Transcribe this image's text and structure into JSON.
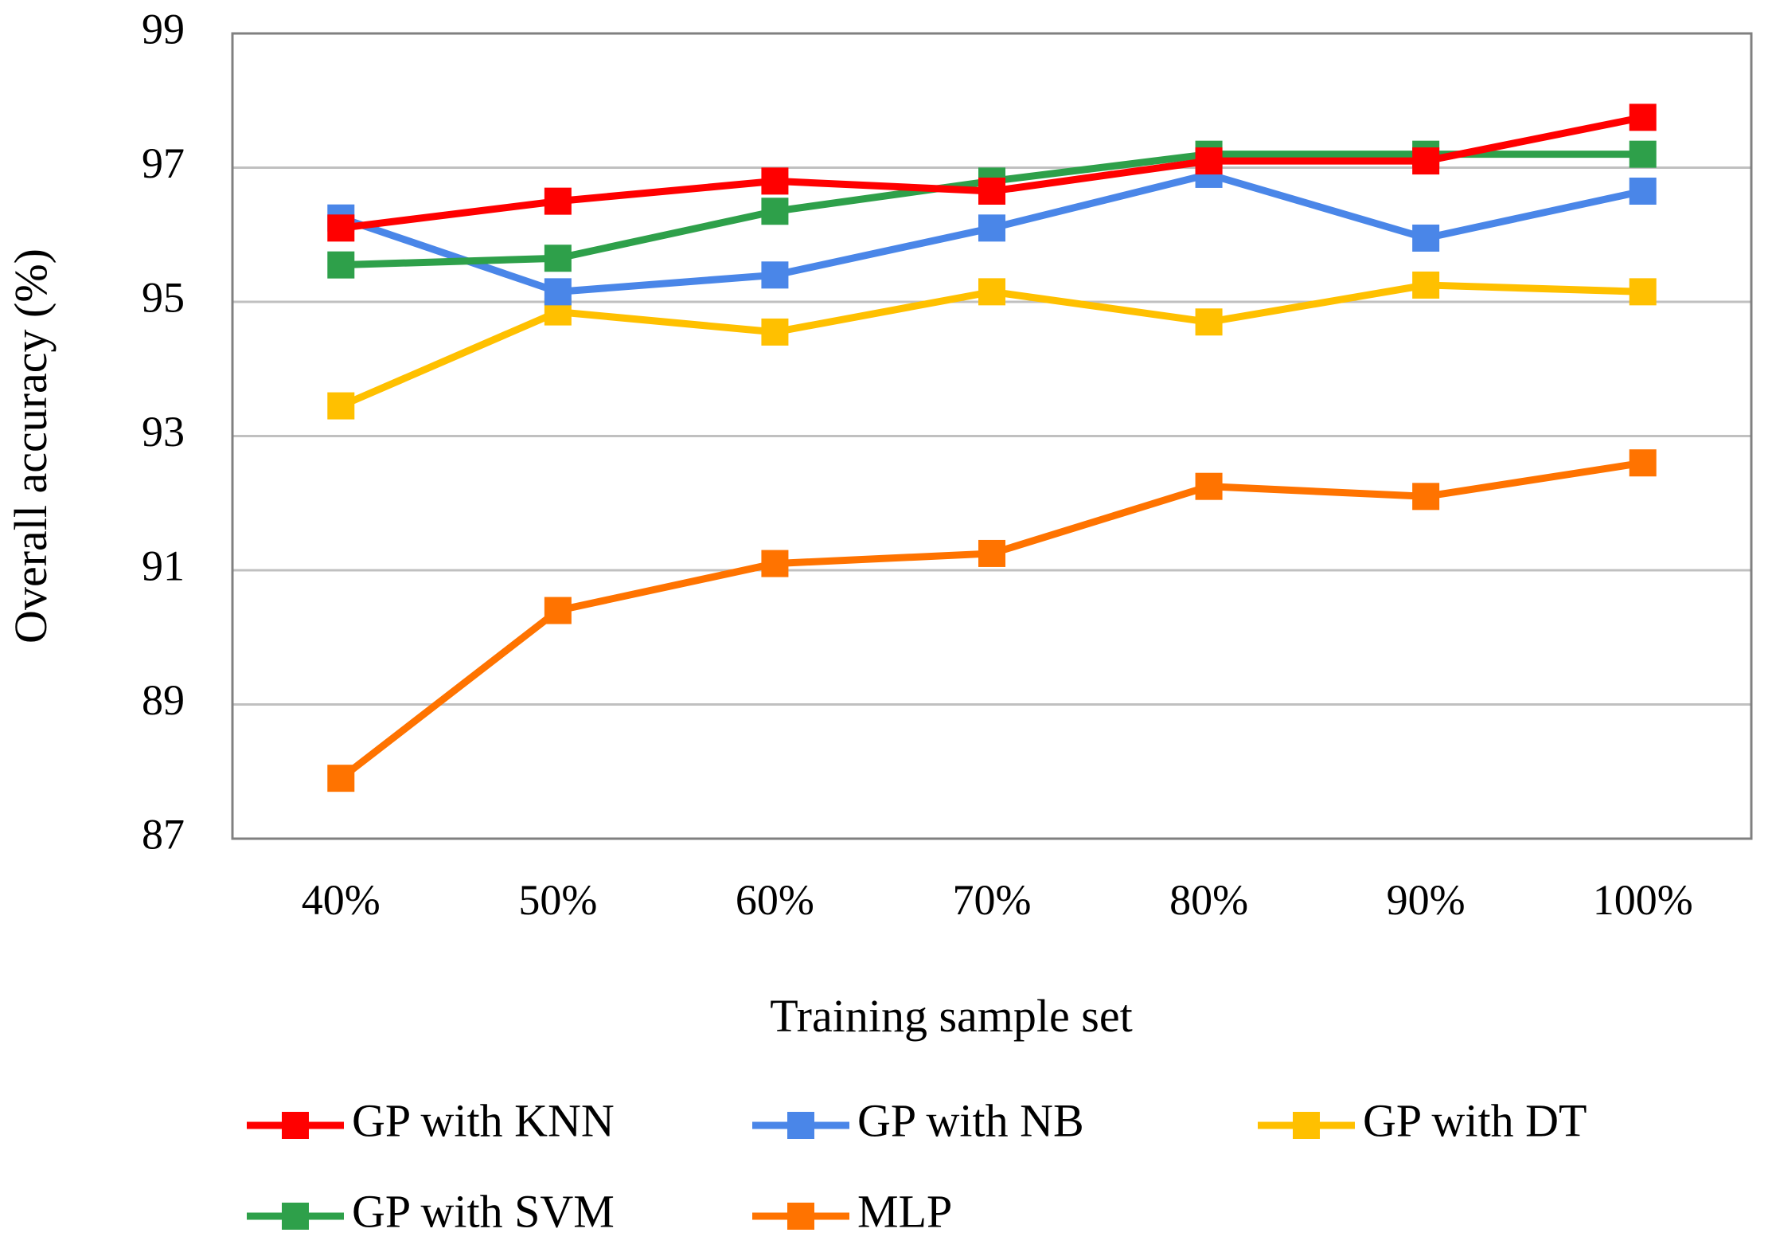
{
  "chart_data": {
    "type": "line",
    "title": "",
    "xlabel": "Training sample set",
    "ylabel": "Overall accuracy (%)",
    "categories": [
      "40%",
      "50%",
      "60%",
      "70%",
      "80%",
      "90%",
      "100%"
    ],
    "ylim": [
      87,
      99
    ],
    "yticks": [
      "87",
      "89",
      "91",
      "93",
      "95",
      "97",
      "99"
    ],
    "grid": true,
    "legend": "bottom",
    "series": [
      {
        "name": "GP with KNN",
        "color": "#ff0000",
        "values": [
          96.1,
          96.5,
          96.8,
          96.65,
          97.1,
          97.1,
          97.75
        ]
      },
      {
        "name": "GP with NB",
        "color": "#4a86e8",
        "values": [
          96.25,
          95.15,
          95.4,
          96.1,
          96.9,
          95.95,
          96.65
        ]
      },
      {
        "name": "GP with DT",
        "color": "#ffc000",
        "values": [
          93.45,
          94.85,
          94.55,
          95.15,
          94.7,
          95.25,
          95.15
        ]
      },
      {
        "name": "GP with SVM",
        "color": "#2ea04a",
        "values": [
          95.55,
          95.65,
          96.35,
          96.8,
          97.2,
          97.2,
          97.2
        ]
      },
      {
        "name": "MLP",
        "color": "#ff7300",
        "values": [
          87.9,
          90.4,
          91.1,
          91.25,
          92.25,
          92.1,
          92.6
        ]
      }
    ]
  }
}
